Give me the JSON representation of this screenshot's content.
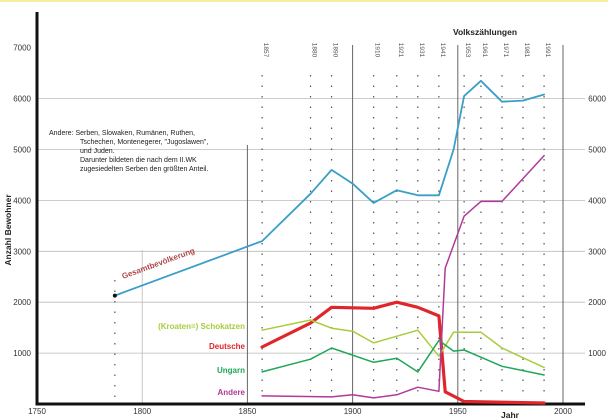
{
  "chart_data": {
    "type": "line",
    "title": "",
    "xlabel": "Jahr",
    "ylabel": "Anzahl Bewohner",
    "xlim": [
      1750,
      2005
    ],
    "ylim": [
      0,
      7500
    ],
    "x_ticks": [
      1750,
      1800,
      1850,
      1900,
      1950,
      2000
    ],
    "x_tick_labels": [
      "1750",
      "1800",
      "1850",
      "1900",
      "1950",
      "2000"
    ],
    "y_ticks_left": [
      1000,
      2000,
      3000,
      4000,
      5000,
      6000,
      7000
    ],
    "y_tick_labels_left": [
      "1000",
      "2000",
      "3000",
      "4000",
      "5000",
      "6000",
      "7000"
    ],
    "y_ticks_right": [
      1000,
      2000,
      3000,
      4000,
      5000,
      6000
    ],
    "y_tick_labels_right": [
      "1000",
      "2000",
      "3000",
      "4000",
      "5000",
      "6000"
    ],
    "grid": true,
    "census_title": "Volkszählungen",
    "census_years": [
      1857,
      1880,
      1890,
      1910,
      1921,
      1931,
      1941,
      1953,
      1961,
      1971,
      1981,
      1991
    ],
    "census_labels": [
      "1857",
      "1880",
      "1890",
      "1910",
      "1921",
      "1931",
      "1941",
      "1953",
      "1961",
      "1971",
      "1981",
      "1991"
    ],
    "note_lines": [
      "Andere:  Serben, Slowaken, Rumänen, Ruthen,",
      "Tschechen, Montenegerer, \"Jugoslawen\",",
      "und Juden.",
      "Darunter bildeten die nach dem II.WK",
      "zugesiedelten Serben den größten Anteil."
    ],
    "series": [
      {
        "name": "Gesamtbevölkerung",
        "color": "#3a9fc7",
        "x": [
          1787,
          1857,
          1880,
          1890,
          1900,
          1910,
          1921,
          1931,
          1941,
          1948,
          1953,
          1961,
          1971,
          1981,
          1991
        ],
        "values": [
          2130,
          3200,
          4130,
          4600,
          4330,
          3950,
          4200,
          4100,
          4100,
          5000,
          6050,
          6350,
          5940,
          5960,
          6080
        ]
      },
      {
        "name": "Deutsche",
        "color": "#e0262b",
        "x": [
          1857,
          1880,
          1890,
          1910,
          1921,
          1931,
          1941,
          1944,
          1953,
          1991
        ],
        "values": [
          1120,
          1590,
          1900,
          1880,
          2000,
          1900,
          1730,
          240,
          50,
          20
        ]
      },
      {
        "name": "(Kroaten=) Schokatzen",
        "color": "#a8cc3c",
        "x": [
          1857,
          1880,
          1890,
          1900,
          1910,
          1931,
          1941,
          1948,
          1961,
          1971,
          1991
        ],
        "values": [
          1450,
          1650,
          1490,
          1430,
          1200,
          1450,
          940,
          1410,
          1410,
          1100,
          720
        ]
      },
      {
        "name": "Ungarn",
        "color": "#1fa65a",
        "x": [
          1857,
          1880,
          1890,
          1910,
          1921,
          1931,
          1941,
          1948,
          1953,
          1961,
          1971,
          1991
        ],
        "values": [
          630,
          880,
          1100,
          820,
          900,
          630,
          1250,
          1040,
          1060,
          920,
          740,
          570
        ]
      },
      {
        "name": "Andere",
        "color": "#b03a9a",
        "x": [
          1857,
          1890,
          1900,
          1910,
          1921,
          1931,
          1941,
          1944,
          1953,
          1961,
          1971,
          1991
        ],
        "values": [
          160,
          140,
          180,
          120,
          180,
          330,
          250,
          2670,
          3690,
          3980,
          3980,
          4880
        ]
      }
    ],
    "series_labels": {
      "total": "Gesamtbevölkerung",
      "schokatzen": "(Kroaten=) Schokatzen",
      "deutsche": "Deutsche",
      "ungarn": "Ungarn",
      "andere": "Andere"
    }
  }
}
